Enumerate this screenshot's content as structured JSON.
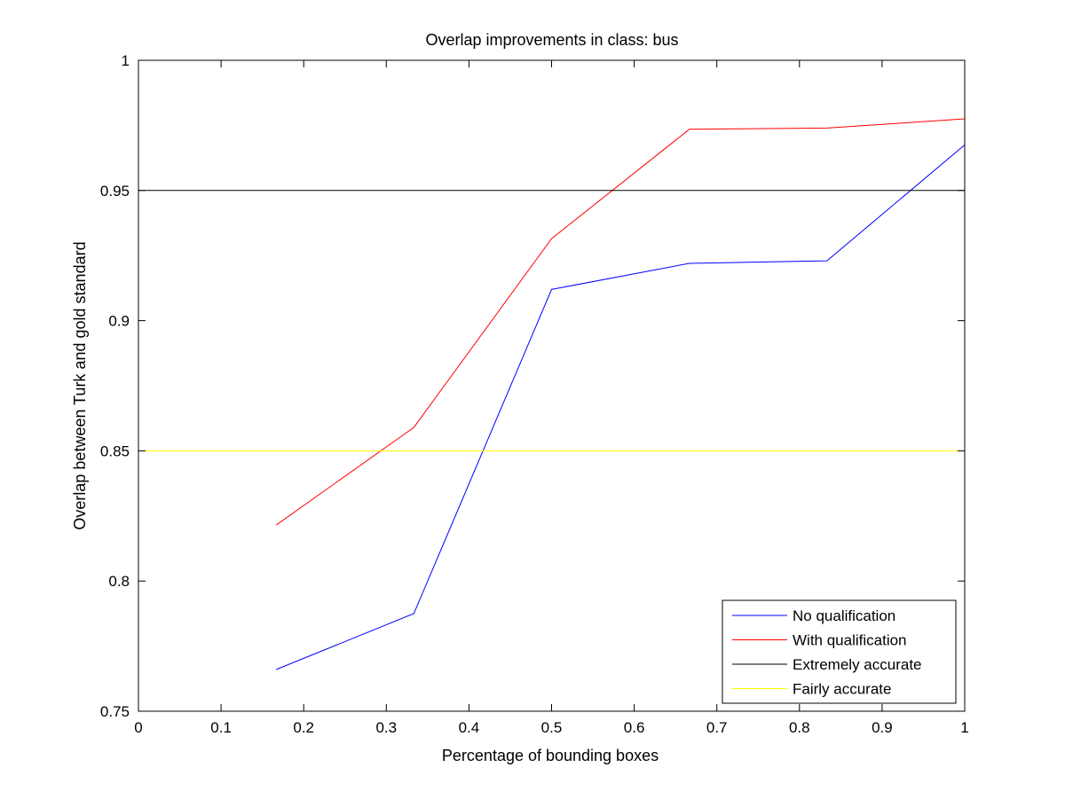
{
  "chart_data": {
    "type": "line",
    "title": "Overlap improvements in class: bus",
    "xlabel": "Percentage of bounding boxes",
    "ylabel": "Overlap between Turk and gold standard",
    "xlim": [
      0,
      1
    ],
    "ylim": [
      0.75,
      1
    ],
    "xticks": [
      0,
      0.1,
      0.2,
      0.3,
      0.4,
      0.5,
      0.6,
      0.7,
      0.8,
      0.9,
      1
    ],
    "xtick_labels": [
      "0",
      "0.1",
      "0.2",
      "0.3",
      "0.4",
      "0.5",
      "0.6",
      "0.7",
      "0.8",
      "0.9",
      "1"
    ],
    "yticks": [
      0.75,
      0.8,
      0.85,
      0.9,
      0.95,
      1
    ],
    "ytick_labels": [
      "0.75",
      "0.8",
      "0.85",
      "0.9",
      "0.95",
      "1"
    ],
    "grid": false,
    "legend_position": "bottom-right",
    "series": [
      {
        "name": "No qualification",
        "color": "#0000ff",
        "x": [
          0.1667,
          0.3333,
          0.5,
          0.6667,
          0.8333,
          1.0
        ],
        "y": [
          0.766,
          0.7875,
          0.912,
          0.922,
          0.923,
          0.9675
        ]
      },
      {
        "name": "With qualification",
        "color": "#ff0000",
        "x": [
          0.1667,
          0.3333,
          0.5,
          0.6667,
          0.8333,
          1.0
        ],
        "y": [
          0.8215,
          0.859,
          0.9315,
          0.9735,
          0.974,
          0.9775
        ]
      },
      {
        "name": "Extremely accurate",
        "color": "#000000",
        "x": [
          0,
          1
        ],
        "y": [
          0.95,
          0.95
        ]
      },
      {
        "name": "Fairly accurate",
        "color": "#ffff00",
        "x": [
          0,
          1
        ],
        "y": [
          0.85,
          0.85
        ]
      }
    ]
  }
}
